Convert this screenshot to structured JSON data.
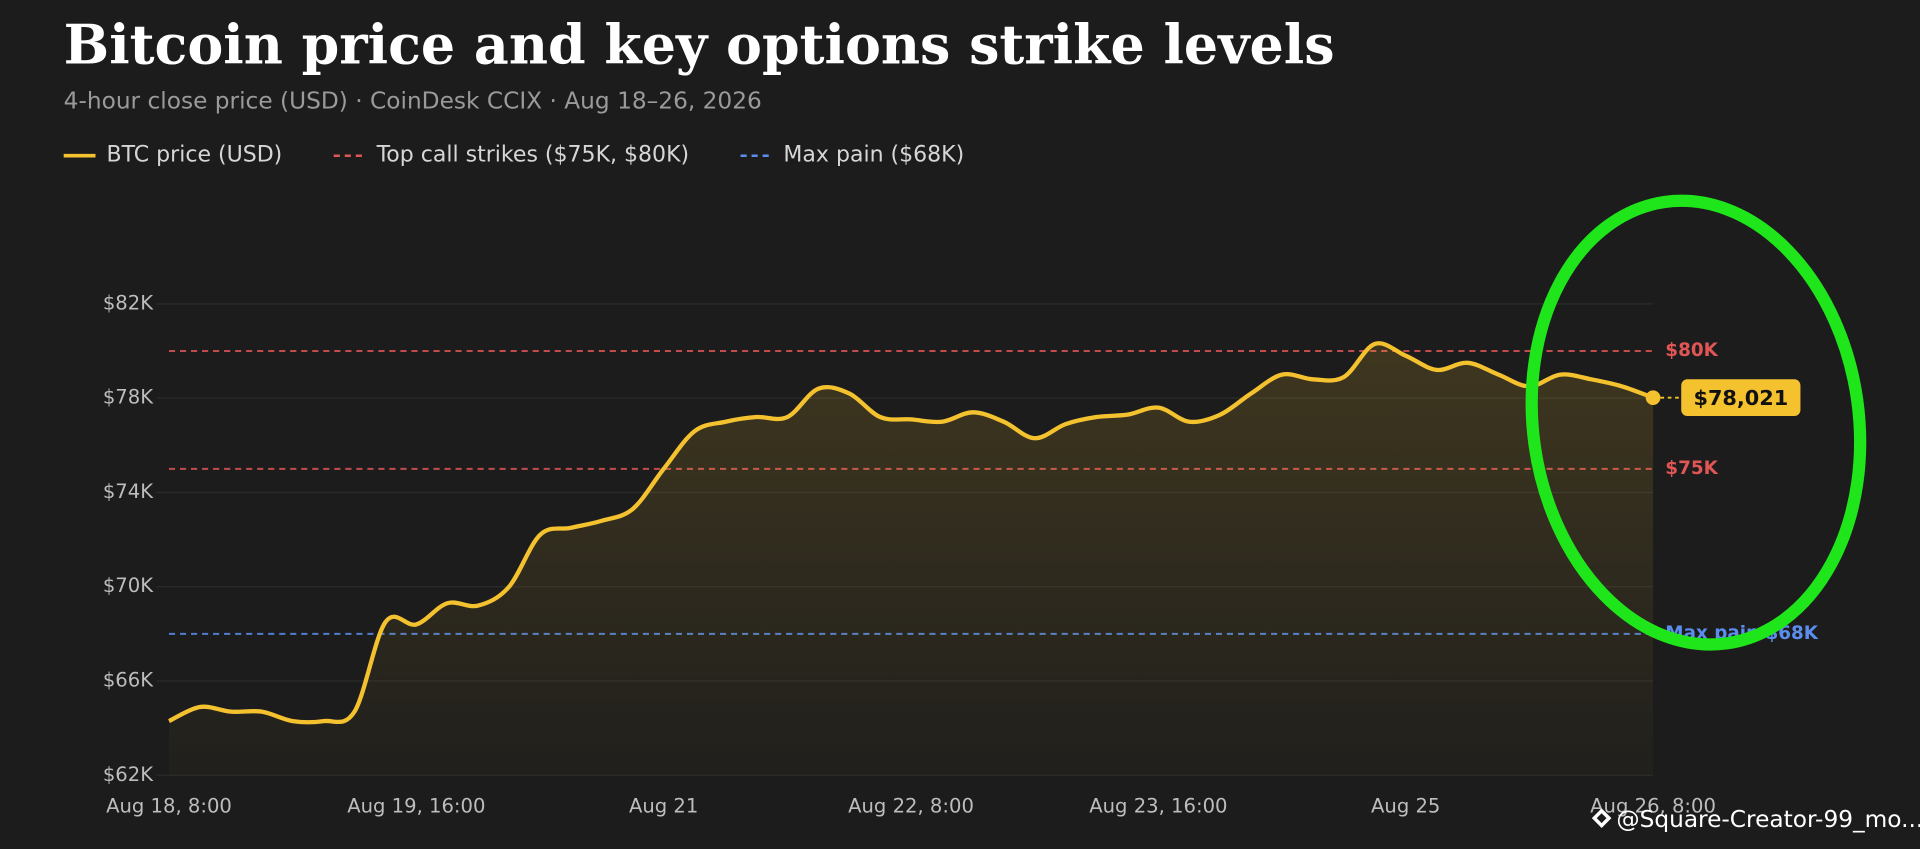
{
  "chart_data": {
    "type": "line",
    "title": "Bitcoin price and key options strike levels",
    "subtitle": "4-hour close price (USD) · CoinDesk CCIX · Aug 18–26, 2026",
    "categories": [
      "Aug 18, 8:00",
      null,
      null,
      null,
      null,
      null,
      null,
      null,
      "Aug 19, 16:00",
      null,
      null,
      null,
      null,
      null,
      null,
      null,
      "Aug 21",
      null,
      null,
      null,
      null,
      null,
      null,
      null,
      "Aug 22, 8:00",
      null,
      null,
      null,
      null,
      null,
      null,
      null,
      "Aug 23, 16:00",
      null,
      null,
      null,
      null,
      null,
      null,
      null,
      "Aug 25",
      null,
      null,
      null,
      null,
      null,
      null,
      null,
      "Aug 26, 8:00"
    ],
    "series": [
      {
        "name": "BTC price (USD)",
        "color": "#f5c22f",
        "values": [
          64.3,
          64.9,
          64.7,
          64.7,
          64.3,
          64.3,
          64.7,
          68.5,
          68.4,
          69.3,
          69.2,
          70.0,
          72.2,
          72.5,
          72.8,
          73.3,
          75.0,
          76.6,
          77.0,
          77.2,
          77.2,
          78.4,
          78.2,
          77.2,
          77.1,
          77.0,
          77.4,
          77.0,
          76.3,
          76.9,
          77.2,
          77.3,
          77.6,
          77.0,
          77.3,
          78.2,
          79.0,
          78.8,
          78.9,
          80.3,
          79.8,
          79.2,
          79.5,
          79.0,
          78.5,
          79.0,
          78.8,
          78.5,
          78.021
        ],
        "value_labels": [
          null,
          null,
          null,
          null,
          null,
          null,
          null,
          null,
          null,
          null,
          null,
          null,
          null,
          null,
          null,
          null,
          null,
          null,
          null,
          null,
          null,
          null,
          null,
          null,
          null,
          null,
          null,
          null,
          null,
          null,
          null,
          null,
          null,
          null,
          null,
          null,
          null,
          null,
          null,
          null,
          null,
          null,
          null,
          null,
          null,
          null,
          null,
          null,
          "$78,021"
        ]
      }
    ],
    "reference_groups": [
      {
        "name": "Top call strikes ($75K, $80K)",
        "color": "#e05555",
        "lines": [
          {
            "value": 80,
            "label": "$80K"
          },
          {
            "value": 75,
            "label": "$75K"
          }
        ]
      },
      {
        "name": "Max pain ($68K)",
        "color": "#5b8def",
        "lines": [
          {
            "value": 68,
            "label": "Max pain $68K"
          }
        ]
      }
    ],
    "ylim": [
      62,
      82
    ],
    "yticks": [
      {
        "value": 62,
        "label": "$62K"
      },
      {
        "value": 66,
        "label": "$66K"
      },
      {
        "value": 70,
        "label": "$70K"
      },
      {
        "value": 74,
        "label": "$74K"
      },
      {
        "value": 78,
        "label": "$78K"
      },
      {
        "value": 82,
        "label": "$82K"
      }
    ],
    "grid": true
  },
  "watermark": "@Square-Creator-99_mo..."
}
